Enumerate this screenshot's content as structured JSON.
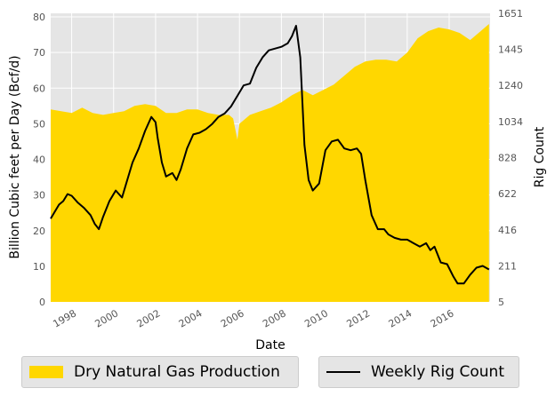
{
  "chart_data": {
    "type": "area",
    "xlabel": "Date",
    "ylabel": "Billion Cubic feet per Day (Bcf/d)",
    "y2label": "Rig Count",
    "xlim": [
      1997.0,
      2017.95
    ],
    "ylim": [
      0,
      81
    ],
    "y2lim": [
      5,
      1651
    ],
    "x_ticks": [
      1998,
      2000,
      2002,
      2004,
      2006,
      2008,
      2010,
      2012,
      2014,
      2016
    ],
    "y_ticks": [
      0,
      10,
      20,
      30,
      40,
      50,
      60,
      70,
      80
    ],
    "y2_ticks": [
      5,
      211,
      416,
      622,
      828,
      1034,
      1240,
      1445,
      1651
    ],
    "grid": true,
    "legend_position": "bottom",
    "series": [
      {
        "name": "Dry Natural Gas Production",
        "type": "area",
        "axis": "left",
        "color": "#FFD700",
        "x": [
          1997.0,
          1997.5,
          1998.0,
          1998.5,
          1999.0,
          1999.5,
          2000.0,
          2000.5,
          2001.0,
          2001.5,
          2002.0,
          2002.5,
          2003.0,
          2003.5,
          2004.0,
          2004.5,
          2005.0,
          2005.5,
          2005.7,
          2005.9,
          2006.0,
          2006.5,
          2007.0,
          2007.5,
          2008.0,
          2008.5,
          2009.0,
          2009.5,
          2010.0,
          2010.5,
          2011.0,
          2011.5,
          2012.0,
          2012.5,
          2013.0,
          2013.5,
          2014.0,
          2014.5,
          2015.0,
          2015.5,
          2016.0,
          2016.5,
          2017.0,
          2017.5,
          2017.9
        ],
        "values": [
          54.0,
          53.5,
          53.0,
          54.5,
          53.0,
          52.5,
          53.0,
          53.5,
          55.0,
          55.5,
          55.0,
          53.0,
          53.0,
          54.0,
          54.0,
          53.0,
          52.5,
          52.5,
          51.5,
          45.5,
          50.0,
          52.5,
          53.5,
          54.5,
          56.0,
          58.0,
          59.5,
          58.0,
          59.5,
          61.0,
          63.5,
          66.0,
          67.5,
          68.0,
          68.0,
          67.5,
          70.0,
          74.0,
          76.0,
          77.0,
          76.5,
          75.5,
          73.5,
          76.0,
          78.0
        ]
      },
      {
        "name": "Weekly Rig Count",
        "type": "line",
        "axis": "right",
        "color": "#000000",
        "x": [
          1997.0,
          1997.2,
          1997.4,
          1997.6,
          1997.8,
          1998.0,
          1998.3,
          1998.6,
          1998.9,
          1999.1,
          1999.3,
          1999.5,
          1999.8,
          2000.1,
          2000.4,
          2000.6,
          2000.9,
          2001.2,
          2001.5,
          2001.8,
          2002.0,
          2002.1,
          2002.3,
          2002.5,
          2002.8,
          2003.0,
          2003.2,
          2003.5,
          2003.8,
          2004.1,
          2004.4,
          2004.7,
          2005.0,
          2005.3,
          2005.6,
          2005.9,
          2006.2,
          2006.5,
          2006.8,
          2007.1,
          2007.4,
          2007.7,
          2008.0,
          2008.3,
          2008.5,
          2008.7,
          2008.9,
          2009.1,
          2009.3,
          2009.5,
          2009.8,
          2010.1,
          2010.4,
          2010.7,
          2011.0,
          2011.3,
          2011.6,
          2011.8,
          2012.0,
          2012.3,
          2012.6,
          2012.9,
          2013.1,
          2013.4,
          2013.7,
          2014.0,
          2014.3,
          2014.6,
          2014.9,
          2015.1,
          2015.3,
          2015.6,
          2015.9,
          2016.2,
          2016.4,
          2016.7,
          2017.0,
          2017.3,
          2017.6,
          2017.9
        ],
        "values": [
          480,
          520,
          560,
          580,
          620,
          610,
          570,
          540,
          500,
          450,
          420,
          490,
          580,
          640,
          600,
          680,
          800,
          880,
          980,
          1060,
          1030,
          940,
          800,
          720,
          740,
          700,
          760,
          880,
          960,
          970,
          990,
          1020,
          1060,
          1080,
          1120,
          1180,
          1240,
          1250,
          1340,
          1400,
          1440,
          1450,
          1460,
          1480,
          1520,
          1580,
          1400,
          900,
          700,
          640,
          680,
          870,
          920,
          930,
          880,
          870,
          880,
          850,
          700,
          500,
          420,
          420,
          390,
          370,
          360,
          360,
          340,
          320,
          340,
          300,
          320,
          230,
          220,
          150,
          110,
          110,
          160,
          200,
          210,
          190
        ]
      }
    ]
  }
}
